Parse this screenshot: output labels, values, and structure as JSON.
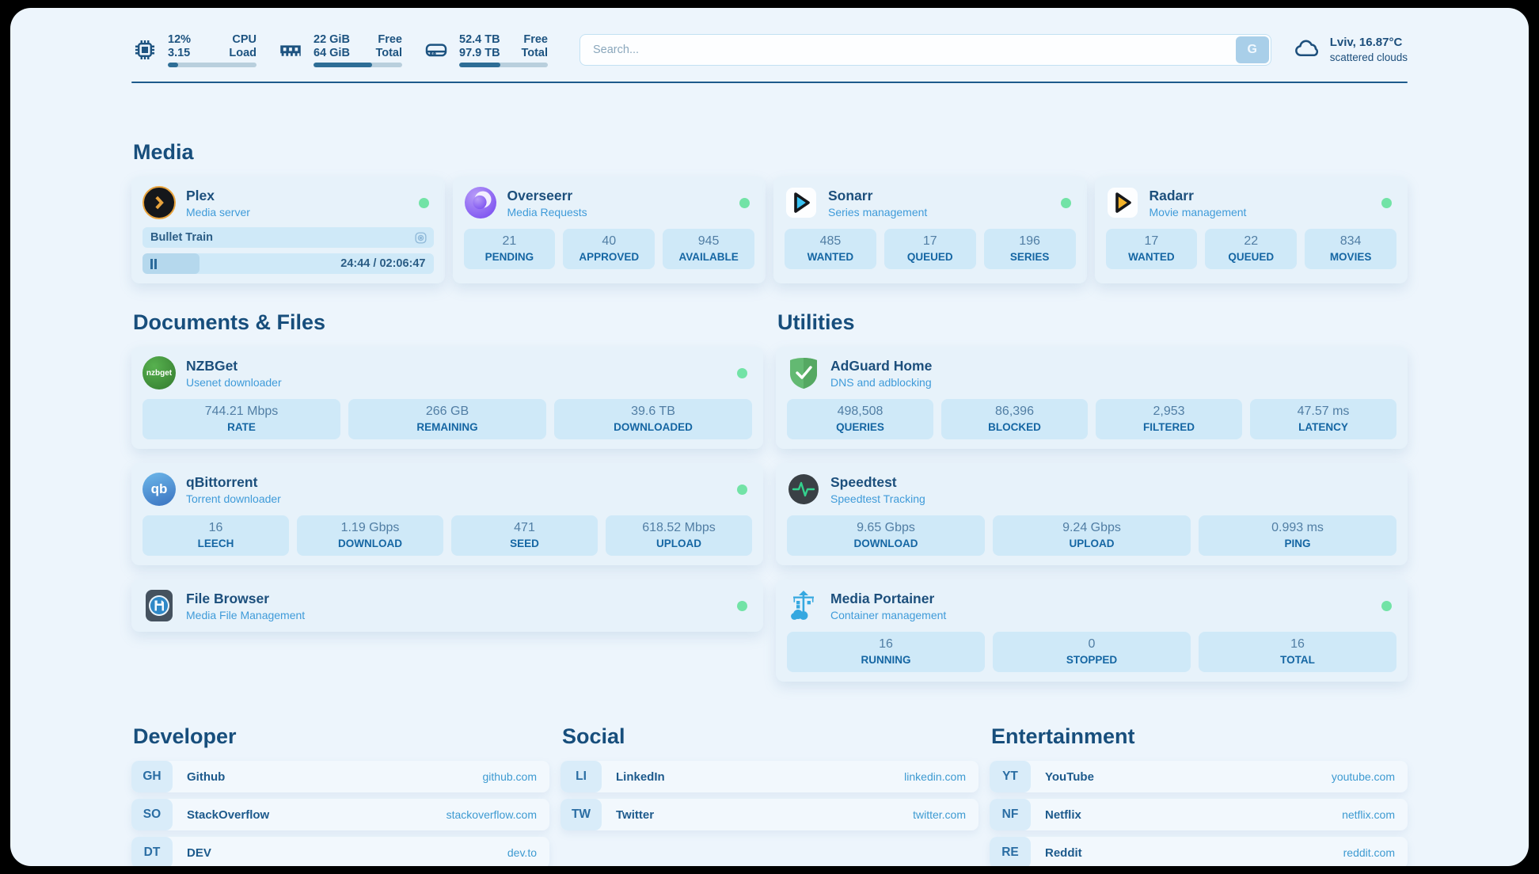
{
  "page": {
    "bg": "#edf5fc",
    "frame_bg": "#000000",
    "divider_color": "#1d5a8c",
    "accent_blue": "#1d5a8c",
    "link_blue": "#3d9ad1",
    "online_green": "#72e3a6"
  },
  "header": {
    "system_stats": [
      {
        "icon": "cpu-icon",
        "value_top": "12%",
        "value_bottom": "3.15",
        "label_top": "CPU",
        "label_bottom": "Load",
        "progress_pct": 12
      },
      {
        "icon": "ram-icon",
        "value_top": "22 GiB",
        "value_bottom": "64 GiB",
        "label_top": "Free",
        "label_bottom": "Total",
        "progress_pct": 66
      },
      {
        "icon": "disk-icon",
        "value_top": "52.4 TB",
        "value_bottom": "97.9 TB",
        "label_top": "Free",
        "label_bottom": "Total",
        "progress_pct": 46
      }
    ],
    "search": {
      "placeholder": "Search...",
      "button_label": "G"
    },
    "weather": {
      "location": "Lviv, 16.87°C",
      "condition": "scattered clouds"
    }
  },
  "sections": {
    "media": {
      "title": "Media",
      "cards": [
        {
          "title": "Plex",
          "subtitle": "Media server",
          "online": true,
          "now_playing": {
            "title": "Bullet Train",
            "time": "24:44 / 02:06:47",
            "progress_pct": 19.5
          }
        },
        {
          "title": "Overseerr",
          "subtitle": "Media Requests",
          "online": true,
          "stats": [
            {
              "value": "21",
              "label": "PENDING"
            },
            {
              "value": "40",
              "label": "APPROVED"
            },
            {
              "value": "945",
              "label": "AVAILABLE"
            }
          ]
        },
        {
          "title": "Sonarr",
          "subtitle": "Series management",
          "online": true,
          "stats": [
            {
              "value": "485",
              "label": "WANTED"
            },
            {
              "value": "17",
              "label": "QUEUED"
            },
            {
              "value": "196",
              "label": "SERIES"
            }
          ]
        },
        {
          "title": "Radarr",
          "subtitle": "Movie management",
          "online": true,
          "stats": [
            {
              "value": "17",
              "label": "WANTED"
            },
            {
              "value": "22",
              "label": "QUEUED"
            },
            {
              "value": "834",
              "label": "MOVIES"
            }
          ]
        }
      ]
    },
    "documents": {
      "title": "Documents & Files",
      "cards": [
        {
          "title": "NZBGet",
          "subtitle": "Usenet downloader",
          "icon_text": "nzbget",
          "online": true,
          "stats": [
            {
              "value": "744.21 Mbps",
              "label": "RATE"
            },
            {
              "value": "266 GB",
              "label": "REMAINING"
            },
            {
              "value": "39.6 TB",
              "label": "DOWNLOADED"
            }
          ]
        },
        {
          "title": "qBittorrent",
          "subtitle": "Torrent downloader",
          "icon_text": "qb",
          "online": true,
          "stats": [
            {
              "value": "16",
              "label": "LEECH"
            },
            {
              "value": "1.19 Gbps",
              "label": "DOWNLOAD"
            },
            {
              "value": "471",
              "label": "SEED"
            },
            {
              "value": "618.52 Mbps",
              "label": "UPLOAD"
            }
          ]
        },
        {
          "title": "File Browser",
          "subtitle": "Media File Management",
          "online": true
        }
      ]
    },
    "utilities": {
      "title": "Utilities",
      "cards": [
        {
          "title": "AdGuard Home",
          "subtitle": "DNS and adblocking",
          "online": false,
          "stats": [
            {
              "value": "498,508",
              "label": "QUERIES"
            },
            {
              "value": "86,396",
              "label": "BLOCKED"
            },
            {
              "value": "2,953",
              "label": "FILTERED"
            },
            {
              "value": "47.57 ms",
              "label": "LATENCY"
            }
          ]
        },
        {
          "title": "Speedtest",
          "subtitle": "Speedtest Tracking",
          "online": false,
          "stats": [
            {
              "value": "9.65 Gbps",
              "label": "DOWNLOAD"
            },
            {
              "value": "9.24 Gbps",
              "label": "UPLOAD"
            },
            {
              "value": "0.993 ms",
              "label": "PING"
            }
          ]
        },
        {
          "title": "Media Portainer",
          "subtitle": "Container management",
          "online": true,
          "stats": [
            {
              "value": "16",
              "label": "RUNNING"
            },
            {
              "value": "0",
              "label": "STOPPED"
            },
            {
              "value": "16",
              "label": "TOTAL"
            }
          ]
        }
      ]
    },
    "bookmarks": [
      {
        "title": "Developer",
        "links": [
          {
            "abbr": "GH",
            "name": "Github",
            "url": "github.com"
          },
          {
            "abbr": "SO",
            "name": "StackOverflow",
            "url": "stackoverflow.com"
          },
          {
            "abbr": "DT",
            "name": "DEV",
            "url": "dev.to"
          }
        ]
      },
      {
        "title": "Social",
        "links": [
          {
            "abbr": "LI",
            "name": "LinkedIn",
            "url": "linkedin.com"
          },
          {
            "abbr": "TW",
            "name": "Twitter",
            "url": "twitter.com"
          }
        ]
      },
      {
        "title": "Entertainment",
        "links": [
          {
            "abbr": "YT",
            "name": "YouTube",
            "url": "youtube.com"
          },
          {
            "abbr": "NF",
            "name": "Netflix",
            "url": "netflix.com"
          },
          {
            "abbr": "RE",
            "name": "Reddit",
            "url": "reddit.com"
          }
        ]
      }
    ]
  }
}
